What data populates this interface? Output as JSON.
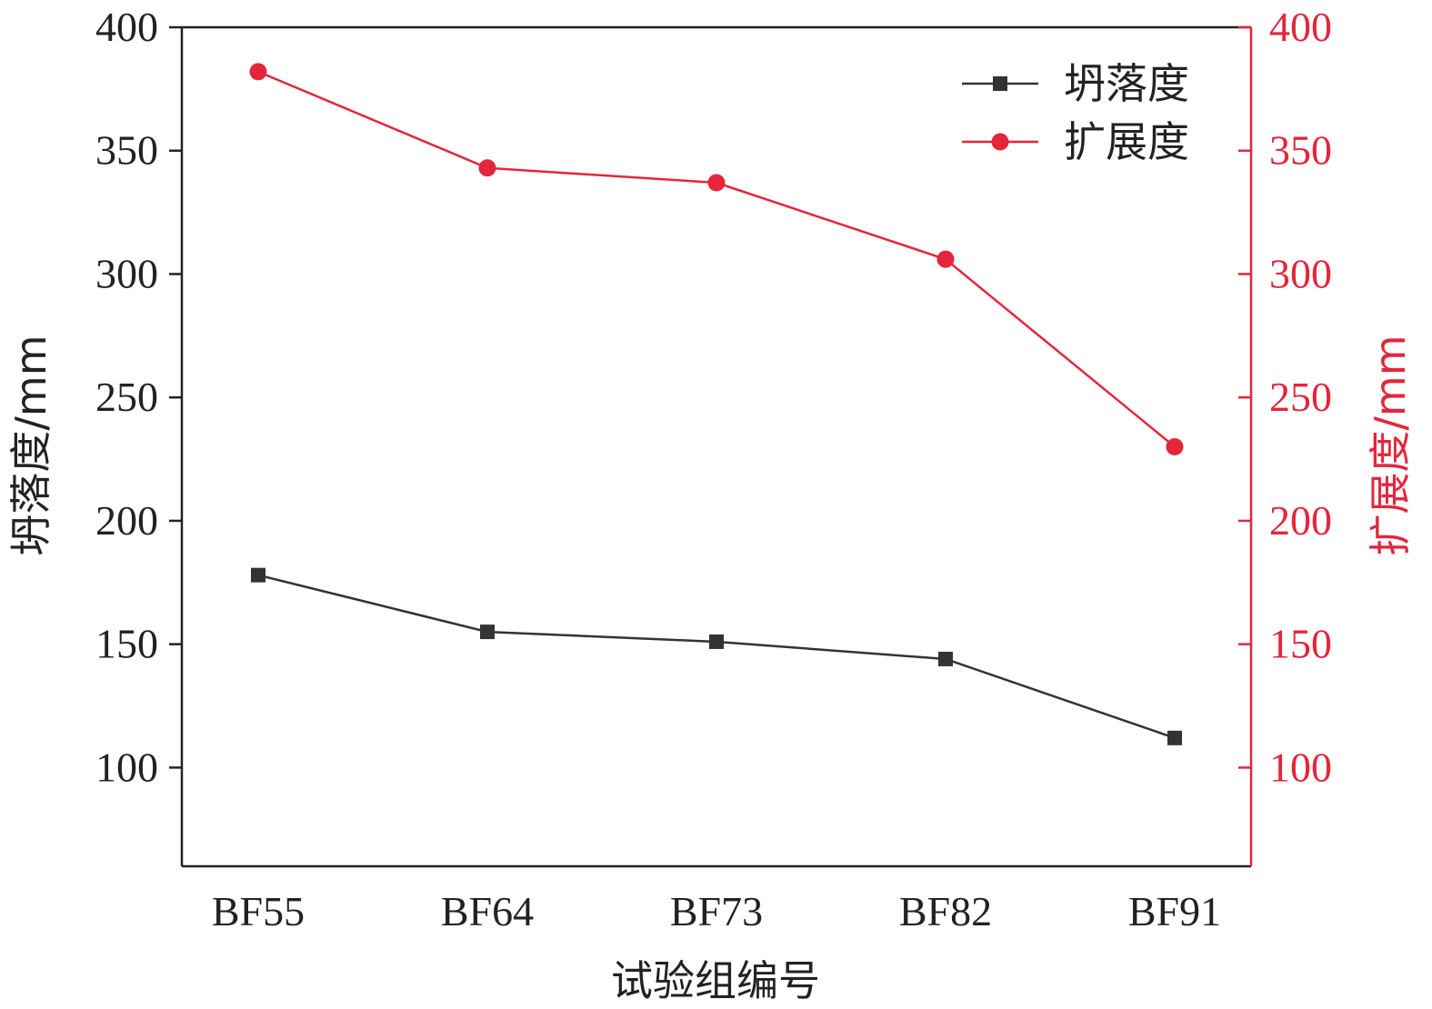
{
  "chart_data": {
    "type": "line",
    "categories": [
      "BF55",
      "BF64",
      "BF73",
      "BF82",
      "BF91"
    ],
    "xlabel": "试验组编号",
    "ylabel_left": "坍落度/mm",
    "ylabel_right": "扩展度/mm",
    "ylim": [
      60,
      400
    ],
    "y_ticks": [
      100,
      150,
      200,
      250,
      300,
      350,
      400
    ],
    "y_tick_labels": [
      "100",
      "150",
      "200",
      "250",
      "300",
      "350",
      "400"
    ],
    "grid": false,
    "legend_position": "top-right",
    "series": [
      {
        "name": "坍落度",
        "axis": "left",
        "marker": "square",
        "color": "#333333",
        "values": [
          178,
          155,
          151,
          144,
          112
        ]
      },
      {
        "name": "扩展度",
        "axis": "right",
        "marker": "circle",
        "color": "#e3263b",
        "values": [
          382,
          343,
          337,
          306,
          230
        ]
      }
    ]
  }
}
